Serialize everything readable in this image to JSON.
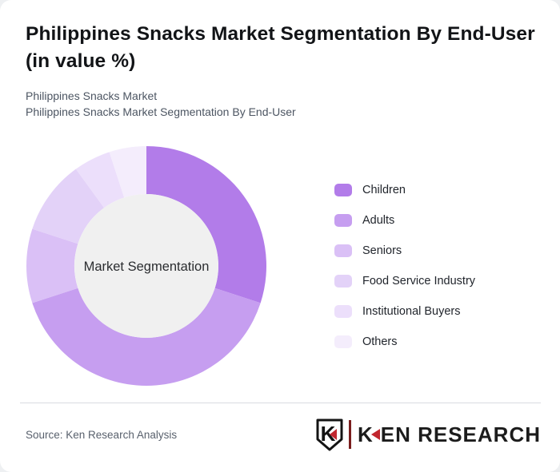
{
  "page": {
    "title": "Philippines Snacks Market Segmentation By End-User (in value %)",
    "subtitle_line1": "Philippines Snacks Market",
    "subtitle_line2": "Philippines Snacks Market Segmentation By End-User"
  },
  "chart_data": {
    "type": "pie",
    "subtype": "donut",
    "center_label": "Market Segmentation",
    "categories": [
      "Children",
      "Adults",
      "Seniors",
      "Food Service Industry",
      "Institutional Buyers",
      "Others"
    ],
    "values": [
      30,
      40,
      10,
      10,
      5,
      5
    ],
    "unit": "value %",
    "colors": [
      "#b27ce9",
      "#c69ef0",
      "#dac0f6",
      "#e3d2f8",
      "#ecdffb",
      "#f4edfc"
    ],
    "start_angle_deg": 0,
    "direction": "clockwise",
    "inner_radius_ratio": 0.6,
    "hole_fill": "#f0f0f0",
    "legend_position": "right"
  },
  "footer": {
    "source": "Source: Ken Research Analysis",
    "logo_initial": "K",
    "logo_text": "KEN RESEARCH",
    "logo_red": "#c2272f"
  }
}
